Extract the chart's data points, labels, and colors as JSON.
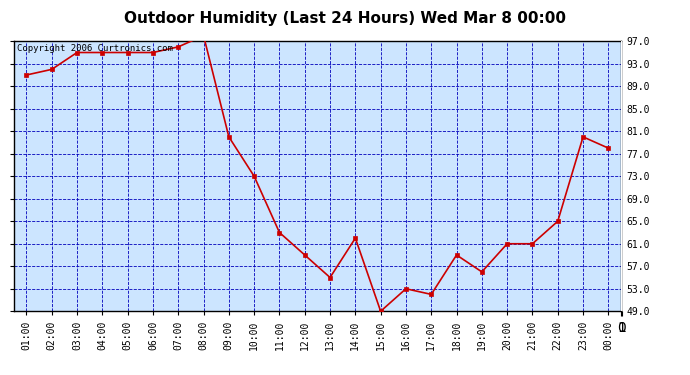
{
  "title": "Outdoor Humidity (Last 24 Hours) Wed Mar 8 00:00",
  "copyright": "Copyright 2006 Curtronics.com",
  "x_labels": [
    "01:00",
    "02:00",
    "03:00",
    "04:00",
    "05:00",
    "06:00",
    "07:00",
    "08:00",
    "09:00",
    "10:00",
    "11:00",
    "12:00",
    "13:00",
    "14:00",
    "15:00",
    "16:00",
    "17:00",
    "18:00",
    "19:00",
    "20:00",
    "21:00",
    "22:00",
    "23:00",
    "00:00"
  ],
  "y_values": [
    91,
    92,
    95,
    95,
    95,
    95,
    96,
    98,
    80,
    73,
    63,
    59,
    55,
    62,
    49,
    53,
    52,
    59,
    56,
    61,
    61,
    65,
    80,
    78
  ],
  "ylim_min": 49.0,
  "ylim_max": 97.0,
  "yticks": [
    49.0,
    53.0,
    57.0,
    61.0,
    65.0,
    69.0,
    73.0,
    77.0,
    81.0,
    85.0,
    89.0,
    93.0,
    97.0
  ],
  "line_color": "#cc0000",
  "marker_color": "#cc0000",
  "background_color": "#cce5ff",
  "grid_color": "#0000bb",
  "title_color": "#000000",
  "border_color": "#000000",
  "fig_background": "#ffffff",
  "title_fontsize": 11,
  "tick_fontsize": 7,
  "copyright_fontsize": 6.5
}
